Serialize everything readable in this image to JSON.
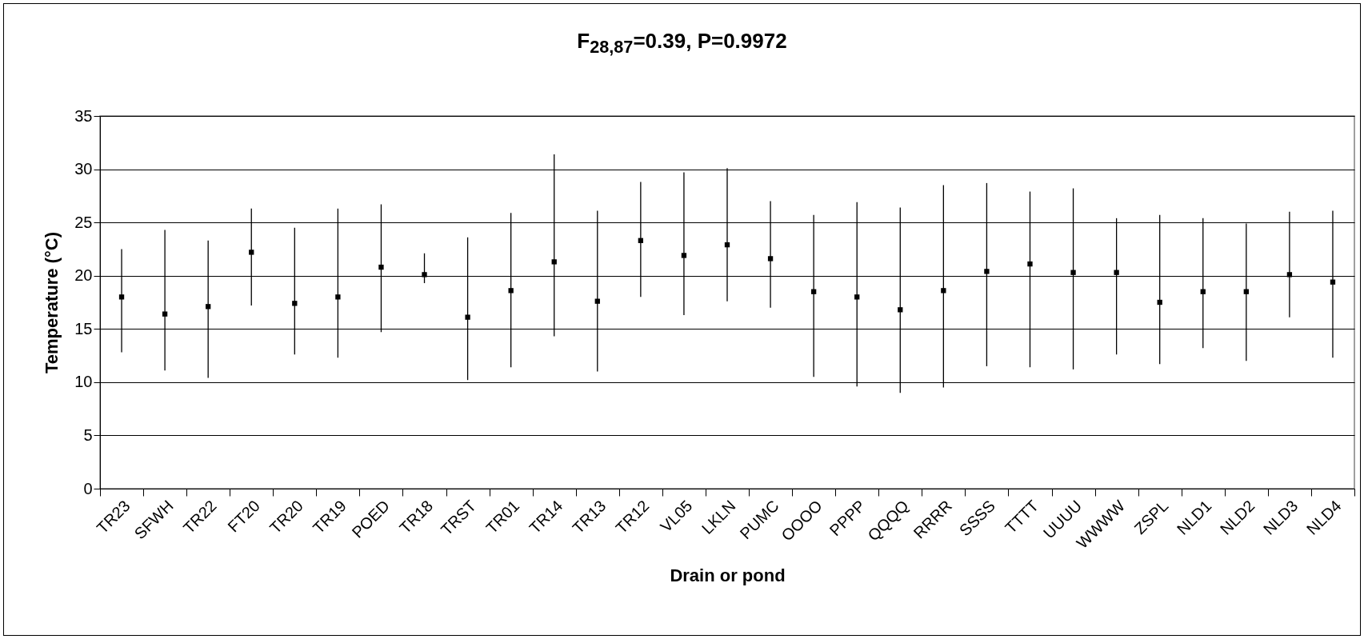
{
  "chart_data": {
    "type": "scatter",
    "title": "F$_{28,87}$=0.39, P=0.9972",
    "xlabel": "Drain or pond",
    "ylabel": "Temperature (°C)",
    "categories": [
      "TR23",
      "SFWH",
      "TR22",
      "FT20",
      "TR20",
      "TR19",
      "POED",
      "TR18",
      "TRST",
      "TR01",
      "TR14",
      "TR13",
      "TR12",
      "VL05",
      "LKLN",
      "PUMC",
      "OOOO",
      "PPPP",
      "QQQQ",
      "RRRR",
      "SSSS",
      "TTTT",
      "UUUU",
      "WWWW",
      "ZSPL",
      "NLD1",
      "NLD2",
      "NLD3",
      "NLD4"
    ],
    "values": [
      18,
      16.4,
      17.1,
      22.2,
      17.4,
      18,
      20.8,
      20.1,
      16.1,
      18.6,
      21.3,
      17.6,
      23.3,
      21.9,
      22.9,
      21.6,
      18.5,
      18,
      16.8,
      18.6,
      20.4,
      21.1,
      20.3,
      20.3,
      17.5,
      18.5,
      18.5,
      20.1,
      19.4
    ],
    "errors": [
      [
        12.8,
        22.5
      ],
      [
        11.1,
        24.3
      ],
      [
        10.4,
        23.3
      ],
      [
        17.2,
        26.3
      ],
      [
        12.6,
        24.5
      ],
      [
        12.3,
        26.3
      ],
      [
        14.7,
        26.7
      ],
      [
        19.3,
        22.1
      ],
      [
        10.2,
        23.6
      ],
      [
        11.4,
        25.9
      ],
      [
        14.3,
        31.4
      ],
      [
        11,
        26.1
      ],
      [
        18,
        28.8
      ],
      [
        16.3,
        29.7
      ],
      [
        17.6,
        30.1
      ],
      [
        17,
        27
      ],
      [
        10.5,
        25.7
      ],
      [
        9.6,
        26.9
      ],
      [
        9,
        26.4
      ],
      [
        9.5,
        28.5
      ],
      [
        11.5,
        28.7
      ],
      [
        11.4,
        27.9
      ],
      [
        11.2,
        28.2
      ],
      [
        12.6,
        25.4
      ],
      [
        11.7,
        25.7
      ],
      [
        13.2,
        25.4
      ],
      [
        12,
        24.9
      ],
      [
        16.1,
        26
      ],
      [
        12.3,
        26.1
      ]
    ],
    "color": "#000000",
    "marker": "square",
    "grid": "y",
    "ylim": [
      0,
      35
    ],
    "yticks": [
      0,
      5,
      10,
      15,
      20,
      25,
      30,
      35
    ]
  }
}
